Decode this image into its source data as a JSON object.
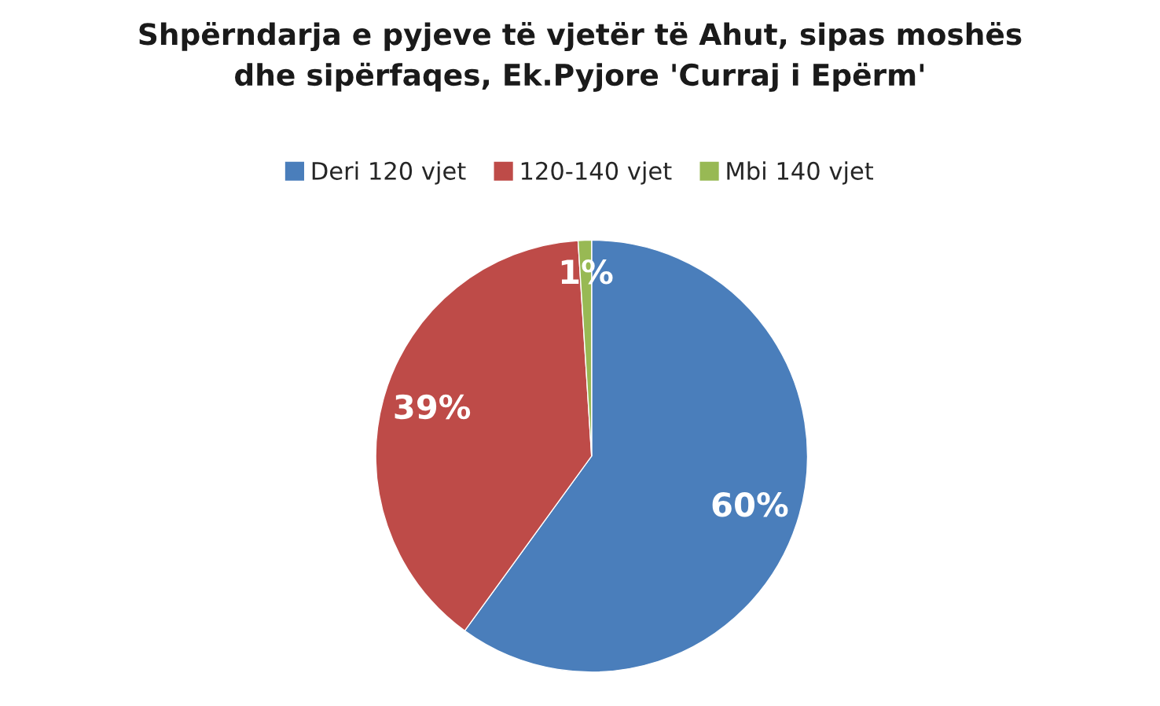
{
  "chart_data": {
    "type": "pie",
    "title": "Shpërndarja e pyjeve të vjetër të Ahut, sipas moshës\ndhe sipërfaqes, Ek.Pyjore 'Curraj i Epërm'",
    "categories": [
      "Deri 120 vjet",
      "120-140 vjet",
      "Mbi 140 vjet"
    ],
    "values": [
      60,
      39,
      1
    ],
    "colors": [
      "#4a7ebb",
      "#be4b48",
      "#98b954"
    ],
    "value_labels": [
      "60%",
      "39%",
      "1%"
    ],
    "legend": "top"
  }
}
